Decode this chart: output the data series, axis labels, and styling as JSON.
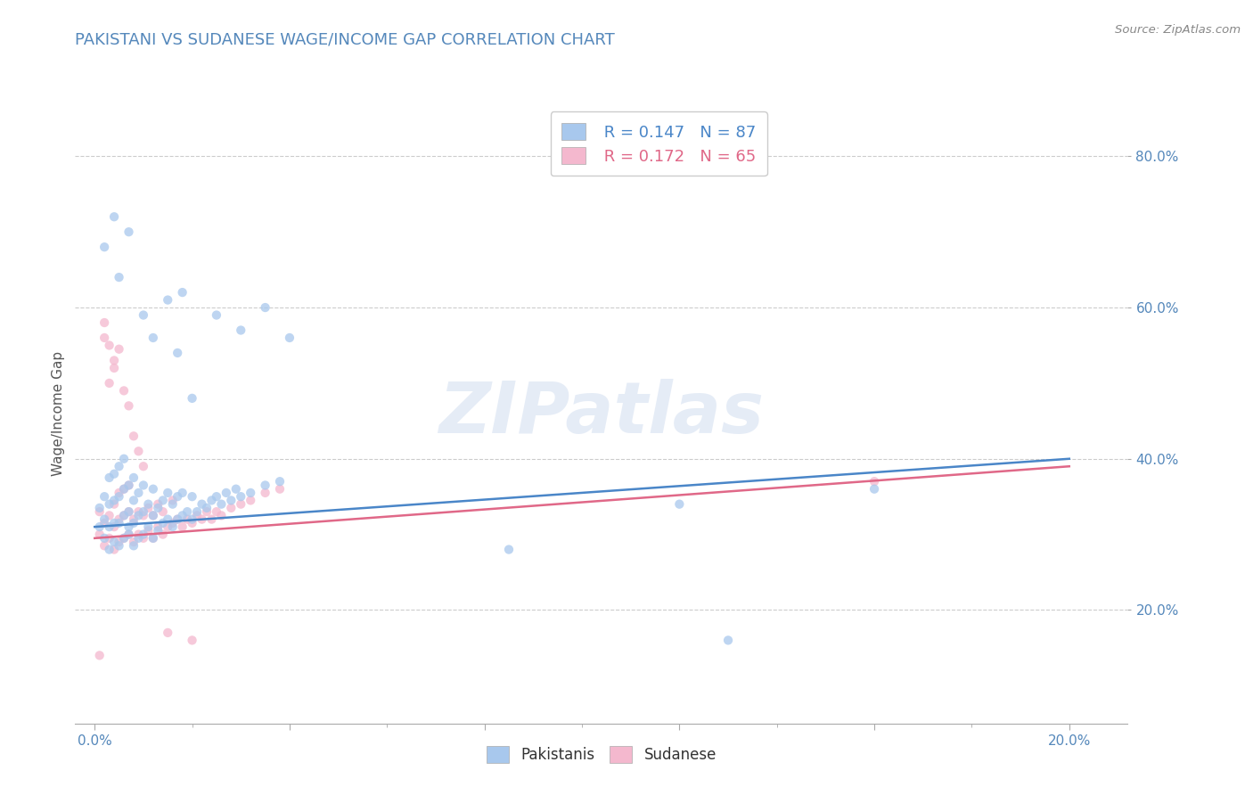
{
  "title": "PAKISTANI VS SUDANESE WAGE/INCOME GAP CORRELATION CHART",
  "source": "Source: ZipAtlas.com",
  "xlabel_label": "Pakistanis",
  "xlabel_label2": "Sudanese",
  "ylabel": "Wage/Income Gap",
  "x_ticks": [
    0.0,
    0.04,
    0.08,
    0.12,
    0.16,
    0.2
  ],
  "x_tick_labels": [
    "0.0%",
    "",
    "",
    "",
    "",
    "20.0%"
  ],
  "y_ticks": [
    0.2,
    0.4,
    0.6,
    0.8
  ],
  "y_tick_labels": [
    "20.0%",
    "40.0%",
    "60.0%",
    "80.0%"
  ],
  "xlim": [
    -0.004,
    0.212
  ],
  "ylim": [
    0.05,
    0.87
  ],
  "blue_color": "#a8c8ed",
  "pink_color": "#f4b8ce",
  "blue_line_color": "#4a86c8",
  "pink_line_color": "#e06888",
  "R_blue": 0.147,
  "N_blue": 87,
  "R_pink": 0.172,
  "N_pink": 65,
  "watermark": "ZIPatlas",
  "title_color": "#5588bb",
  "title_fontsize": 13,
  "blue_scatter": [
    [
      0.001,
      0.31
    ],
    [
      0.001,
      0.335
    ],
    [
      0.002,
      0.295
    ],
    [
      0.002,
      0.32
    ],
    [
      0.002,
      0.35
    ],
    [
      0.003,
      0.28
    ],
    [
      0.003,
      0.31
    ],
    [
      0.003,
      0.34
    ],
    [
      0.003,
      0.375
    ],
    [
      0.004,
      0.29
    ],
    [
      0.004,
      0.315
    ],
    [
      0.004,
      0.345
    ],
    [
      0.004,
      0.38
    ],
    [
      0.005,
      0.285
    ],
    [
      0.005,
      0.315
    ],
    [
      0.005,
      0.35
    ],
    [
      0.005,
      0.39
    ],
    [
      0.006,
      0.295
    ],
    [
      0.006,
      0.325
    ],
    [
      0.006,
      0.36
    ],
    [
      0.006,
      0.4
    ],
    [
      0.007,
      0.3
    ],
    [
      0.007,
      0.33
    ],
    [
      0.007,
      0.365
    ],
    [
      0.007,
      0.31
    ],
    [
      0.008,
      0.285
    ],
    [
      0.008,
      0.315
    ],
    [
      0.008,
      0.345
    ],
    [
      0.008,
      0.375
    ],
    [
      0.009,
      0.295
    ],
    [
      0.009,
      0.325
    ],
    [
      0.009,
      0.355
    ],
    [
      0.01,
      0.3
    ],
    [
      0.01,
      0.33
    ],
    [
      0.01,
      0.365
    ],
    [
      0.011,
      0.31
    ],
    [
      0.011,
      0.34
    ],
    [
      0.012,
      0.295
    ],
    [
      0.012,
      0.325
    ],
    [
      0.012,
      0.36
    ],
    [
      0.013,
      0.305
    ],
    [
      0.013,
      0.335
    ],
    [
      0.014,
      0.315
    ],
    [
      0.014,
      0.345
    ],
    [
      0.015,
      0.32
    ],
    [
      0.015,
      0.355
    ],
    [
      0.016,
      0.31
    ],
    [
      0.016,
      0.34
    ],
    [
      0.017,
      0.32
    ],
    [
      0.017,
      0.35
    ],
    [
      0.018,
      0.325
    ],
    [
      0.018,
      0.355
    ],
    [
      0.019,
      0.33
    ],
    [
      0.02,
      0.32
    ],
    [
      0.02,
      0.35
    ],
    [
      0.021,
      0.33
    ],
    [
      0.022,
      0.34
    ],
    [
      0.023,
      0.335
    ],
    [
      0.024,
      0.345
    ],
    [
      0.025,
      0.35
    ],
    [
      0.026,
      0.34
    ],
    [
      0.027,
      0.355
    ],
    [
      0.028,
      0.345
    ],
    [
      0.029,
      0.36
    ],
    [
      0.03,
      0.35
    ],
    [
      0.032,
      0.355
    ],
    [
      0.035,
      0.365
    ],
    [
      0.038,
      0.37
    ],
    [
      0.002,
      0.68
    ],
    [
      0.004,
      0.72
    ],
    [
      0.005,
      0.64
    ],
    [
      0.007,
      0.7
    ],
    [
      0.01,
      0.59
    ],
    [
      0.012,
      0.56
    ],
    [
      0.015,
      0.61
    ],
    [
      0.017,
      0.54
    ],
    [
      0.018,
      0.62
    ],
    [
      0.02,
      0.48
    ],
    [
      0.025,
      0.59
    ],
    [
      0.03,
      0.57
    ],
    [
      0.035,
      0.6
    ],
    [
      0.04,
      0.56
    ],
    [
      0.085,
      0.28
    ],
    [
      0.12,
      0.34
    ],
    [
      0.13,
      0.16
    ],
    [
      0.16,
      0.36
    ]
  ],
  "pink_scatter": [
    [
      0.001,
      0.3
    ],
    [
      0.001,
      0.33
    ],
    [
      0.002,
      0.285
    ],
    [
      0.002,
      0.315
    ],
    [
      0.002,
      0.56
    ],
    [
      0.003,
      0.295
    ],
    [
      0.003,
      0.325
    ],
    [
      0.003,
      0.5
    ],
    [
      0.004,
      0.28
    ],
    [
      0.004,
      0.31
    ],
    [
      0.004,
      0.34
    ],
    [
      0.004,
      0.53
    ],
    [
      0.005,
      0.29
    ],
    [
      0.005,
      0.32
    ],
    [
      0.005,
      0.355
    ],
    [
      0.006,
      0.295
    ],
    [
      0.006,
      0.325
    ],
    [
      0.006,
      0.36
    ],
    [
      0.007,
      0.3
    ],
    [
      0.007,
      0.33
    ],
    [
      0.007,
      0.365
    ],
    [
      0.008,
      0.29
    ],
    [
      0.008,
      0.32
    ],
    [
      0.009,
      0.3
    ],
    [
      0.009,
      0.33
    ],
    [
      0.01,
      0.295
    ],
    [
      0.01,
      0.325
    ],
    [
      0.011,
      0.305
    ],
    [
      0.011,
      0.335
    ],
    [
      0.012,
      0.295
    ],
    [
      0.012,
      0.325
    ],
    [
      0.013,
      0.31
    ],
    [
      0.013,
      0.34
    ],
    [
      0.014,
      0.3
    ],
    [
      0.014,
      0.33
    ],
    [
      0.015,
      0.31
    ],
    [
      0.016,
      0.315
    ],
    [
      0.016,
      0.345
    ],
    [
      0.017,
      0.32
    ],
    [
      0.018,
      0.31
    ],
    [
      0.019,
      0.32
    ],
    [
      0.02,
      0.315
    ],
    [
      0.021,
      0.325
    ],
    [
      0.022,
      0.32
    ],
    [
      0.023,
      0.33
    ],
    [
      0.024,
      0.32
    ],
    [
      0.025,
      0.33
    ],
    [
      0.026,
      0.325
    ],
    [
      0.028,
      0.335
    ],
    [
      0.03,
      0.34
    ],
    [
      0.032,
      0.345
    ],
    [
      0.035,
      0.355
    ],
    [
      0.038,
      0.36
    ],
    [
      0.002,
      0.58
    ],
    [
      0.003,
      0.55
    ],
    [
      0.004,
      0.52
    ],
    [
      0.005,
      0.545
    ],
    [
      0.006,
      0.49
    ],
    [
      0.007,
      0.47
    ],
    [
      0.008,
      0.43
    ],
    [
      0.009,
      0.41
    ],
    [
      0.001,
      0.14
    ],
    [
      0.01,
      0.39
    ],
    [
      0.015,
      0.17
    ],
    [
      0.02,
      0.16
    ],
    [
      0.16,
      0.37
    ]
  ],
  "blue_trendline": [
    [
      0.0,
      0.31
    ],
    [
      0.2,
      0.4
    ]
  ],
  "pink_trendline": [
    [
      0.0,
      0.295
    ],
    [
      0.2,
      0.39
    ]
  ]
}
